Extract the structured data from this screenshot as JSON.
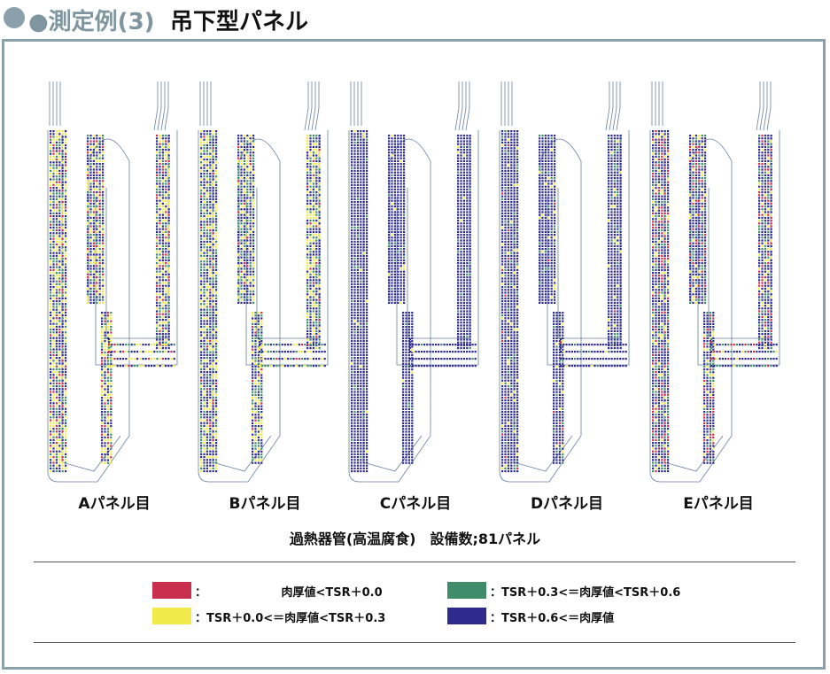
{
  "title": {
    "prefix": "●測定例(3)",
    "main": "吊下型パネル"
  },
  "colors": {
    "red": "#c8304e",
    "yellow": "#f2e94a",
    "green": "#3f8b6a",
    "blue": "#2e2b8c",
    "frame": "#8aa0aa"
  },
  "panels": [
    {
      "label": "Aパネル目",
      "mix": {
        "red": 0.1,
        "yellow": 0.28,
        "green": 0.22,
        "blue": 0.4
      }
    },
    {
      "label": "Bパネル目",
      "mix": {
        "red": 0.04,
        "yellow": 0.25,
        "green": 0.26,
        "blue": 0.45
      }
    },
    {
      "label": "Cパネル目",
      "mix": {
        "red": 0.0,
        "yellow": 0.02,
        "green": 0.04,
        "blue": 0.94
      }
    },
    {
      "label": "Dパネル目",
      "mix": {
        "red": 0.01,
        "yellow": 0.04,
        "green": 0.07,
        "blue": 0.88
      }
    },
    {
      "label": "Eパネル目",
      "mix": {
        "red": 0.16,
        "yellow": 0.1,
        "green": 0.16,
        "blue": 0.58
      }
    }
  ],
  "caption": "過熱器管(高温腐食)　設備数;81パネル",
  "legend": [
    {
      "color": "red",
      "text": "：　　　　　　　肉厚値<TSR＋0.0"
    },
    {
      "color": "yellow",
      "text": "：TSR＋0.0<＝肉厚値<TSR＋0.3"
    },
    {
      "color": "green",
      "text": "：TSR＋0.3<＝肉厚値<TSR＋0.6"
    },
    {
      "color": "blue",
      "text": "：TSR＋0.6<＝肉厚値"
    }
  ]
}
